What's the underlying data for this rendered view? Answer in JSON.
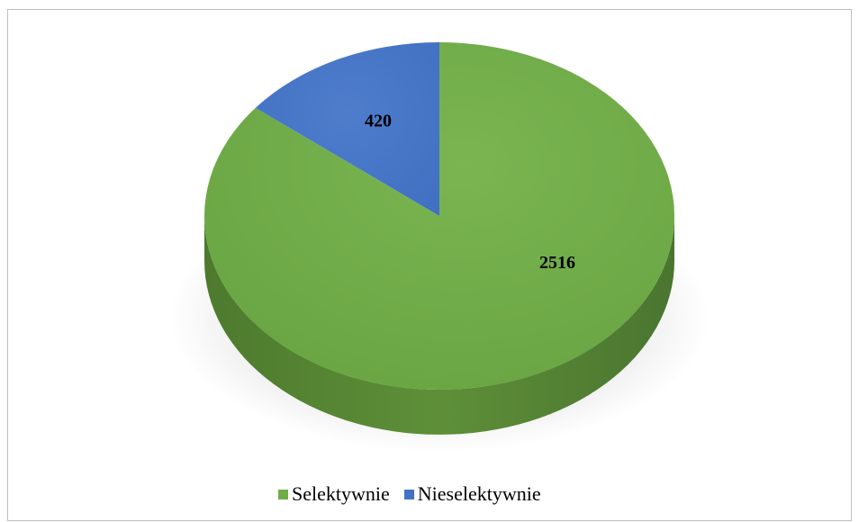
{
  "chart_data": {
    "type": "pie",
    "categories": [
      "Selektywnie",
      "Nieselektywnie"
    ],
    "values": [
      2516,
      420
    ],
    "data_labels": [
      "2516",
      "420"
    ],
    "colors": {
      "Selektywnie": "#70ad47",
      "Nieselektywnie": "#4472c4"
    },
    "style": "3d",
    "start_angle": "12 o'clock",
    "direction": "counterclockwise",
    "legend_position": "bottom"
  },
  "legend": {
    "items": [
      {
        "label": "Selektywnie",
        "color": "#70ad47"
      },
      {
        "label": "Nieselektywnie",
        "color": "#4472c4"
      }
    ]
  }
}
